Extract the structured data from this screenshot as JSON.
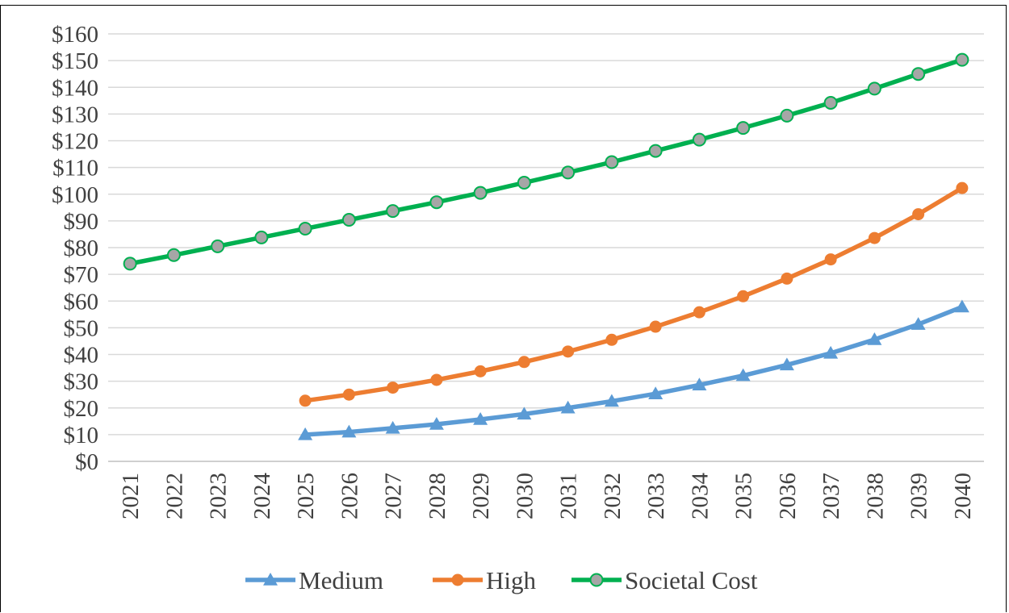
{
  "chart_data": {
    "type": "line",
    "title": "",
    "xlabel": "",
    "ylabel": "",
    "categories": [
      "2021",
      "2022",
      "2023",
      "2024",
      "2025",
      "2026",
      "2027",
      "2028",
      "2029",
      "2030",
      "2031",
      "2032",
      "2033",
      "2034",
      "2035",
      "2036",
      "2037",
      "2038",
      "2039",
      "2040"
    ],
    "ylim": [
      0,
      160
    ],
    "y_ticks": [
      0,
      10,
      20,
      30,
      40,
      50,
      60,
      70,
      80,
      90,
      100,
      110,
      120,
      130,
      140,
      150,
      160
    ],
    "y_tick_labels": [
      "$0",
      "$10",
      "$20",
      "$30",
      "$40",
      "$50",
      "$60",
      "$70",
      "$80",
      "$90",
      "$100",
      "$110",
      "$120",
      "$130",
      "$140",
      "$150",
      "$160"
    ],
    "grid": true,
    "legend_position": "bottom",
    "series": [
      {
        "name": "Medium",
        "color": "#5B9BD5",
        "marker": "triangle",
        "values": [
          null,
          null,
          null,
          null,
          10,
          11,
          12.4,
          13.9,
          15.7,
          17.7,
          20,
          22.5,
          25.3,
          28.6,
          32.1,
          36.1,
          40.5,
          45.6,
          51.3,
          57.8
        ]
      },
      {
        "name": "High",
        "color": "#ED7D31",
        "marker": "circle",
        "values": [
          null,
          null,
          null,
          null,
          22.7,
          25,
          27.6,
          30.5,
          33.7,
          37.2,
          41.1,
          45.5,
          50.4,
          55.8,
          61.8,
          68.4,
          75.6,
          83.6,
          92.5,
          102.3
        ]
      },
      {
        "name": "Societal Cost",
        "color": "#00B050",
        "marker_fill": "#A6A6A6",
        "marker": "circle",
        "values": [
          74,
          77.2,
          80.5,
          83.8,
          87.1,
          90.4,
          93.7,
          97,
          100.5,
          104.3,
          108.1,
          112,
          116.2,
          120.4,
          124.8,
          129.4,
          134.2,
          139.5,
          145,
          150.3
        ]
      }
    ]
  }
}
